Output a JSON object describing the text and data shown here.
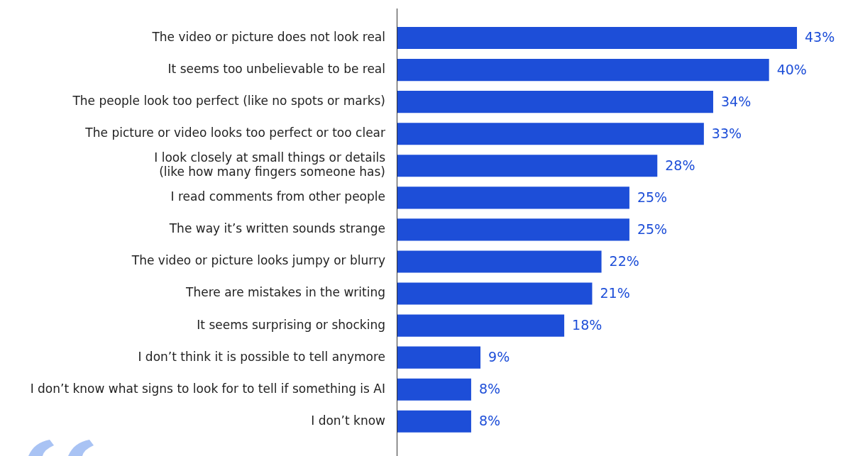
{
  "chart_data": {
    "type": "bar",
    "orientation": "horizontal",
    "categories": [
      "The video or picture does not look real",
      "It seems too unbelievable to be real",
      "The people look too perfect (like no spots or marks)",
      "The picture or video looks too perfect or too clear",
      "I look closely at small things or details\n(like how many fingers someone has)",
      "I read comments from other people",
      "The way it’s written sounds strange",
      "The video or picture looks jumpy or blurry",
      "There are mistakes in the writing",
      "It seems surprising or shocking",
      "I don’t think it is possible to tell anymore",
      "I don’t know what signs to look for to tell if something is AI",
      "I don’t know"
    ],
    "values": [
      43,
      40,
      34,
      33,
      28,
      25,
      25,
      22,
      21,
      18,
      9,
      8,
      8
    ],
    "value_labels": [
      "43%",
      "40%",
      "34%",
      "33%",
      "28%",
      "25%",
      "25%",
      "22%",
      "21%",
      "18%",
      "9%",
      "8%",
      "8%"
    ],
    "color": "#1d4ed8",
    "grid": false,
    "legend": false,
    "tick_labels": "y"
  }
}
